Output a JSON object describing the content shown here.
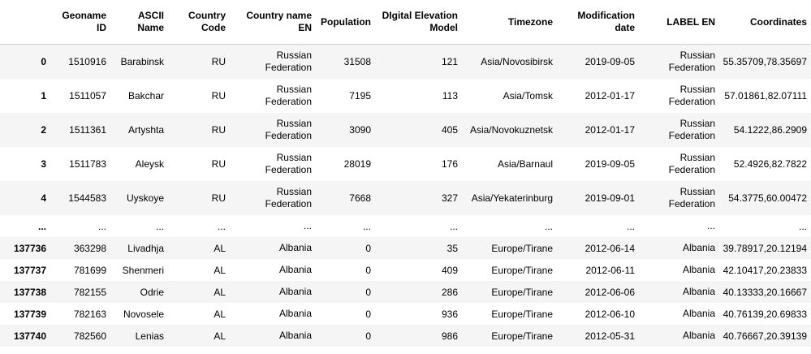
{
  "columns": [
    {
      "label": "Geoname ID"
    },
    {
      "label": "ASCII Name"
    },
    {
      "label": "Country Code"
    },
    {
      "label": "Country name EN"
    },
    {
      "label": "Population"
    },
    {
      "label": "DIgital Elevation Model"
    },
    {
      "label": "Timezone"
    },
    {
      "label": "Modification date"
    },
    {
      "label": "LABEL EN"
    },
    {
      "label": "Coordinates"
    }
  ],
  "rows": [
    {
      "index": "0",
      "cells": [
        "1510916",
        "Barabinsk",
        "RU",
        "Russian Federation",
        "31508",
        "121",
        "Asia/Novosibirsk",
        "2019-09-05",
        "Russian Federation",
        "55.35709,78.35697"
      ]
    },
    {
      "index": "1",
      "cells": [
        "1511057",
        "Bakchar",
        "RU",
        "Russian Federation",
        "7195",
        "113",
        "Asia/Tomsk",
        "2012-01-17",
        "Russian Federation",
        "57.01861,82.07111"
      ]
    },
    {
      "index": "2",
      "cells": [
        "1511361",
        "Artyshta",
        "RU",
        "Russian Federation",
        "3090",
        "405",
        "Asia/Novokuznetsk",
        "2012-01-17",
        "Russian Federation",
        "54.1222,86.2909"
      ]
    },
    {
      "index": "3",
      "cells": [
        "1511783",
        "Aleysk",
        "RU",
        "Russian Federation",
        "28019",
        "176",
        "Asia/Barnaul",
        "2019-09-05",
        "Russian Federation",
        "52.4926,82.7822"
      ]
    },
    {
      "index": "4",
      "cells": [
        "1544583",
        "Uyskoye",
        "RU",
        "Russian Federation",
        "7668",
        "327",
        "Asia/Yekaterinburg",
        "2019-09-01",
        "Russian Federation",
        "54.3775,60.00472"
      ]
    },
    {
      "index": "...",
      "cells": [
        "...",
        "...",
        "...",
        "...",
        "...",
        "...",
        "...",
        "...",
        "...",
        "..."
      ]
    },
    {
      "index": "137736",
      "cells": [
        "363298",
        "Livadhja",
        "AL",
        "Albania",
        "0",
        "35",
        "Europe/Tirane",
        "2012-06-14",
        "Albania",
        "39.78917,20.12194"
      ]
    },
    {
      "index": "137737",
      "cells": [
        "781699",
        "Shenmeri",
        "AL",
        "Albania",
        "0",
        "409",
        "Europe/Tirane",
        "2012-06-11",
        "Albania",
        "42.10417,20.23833"
      ]
    },
    {
      "index": "137738",
      "cells": [
        "782155",
        "Odrie",
        "AL",
        "Albania",
        "0",
        "286",
        "Europe/Tirane",
        "2012-06-06",
        "Albania",
        "40.13333,20.16667"
      ]
    },
    {
      "index": "137739",
      "cells": [
        "782163",
        "Novosele",
        "AL",
        "Albania",
        "0",
        "936",
        "Europe/Tirane",
        "2012-06-10",
        "Albania",
        "40.76139,20.69833"
      ]
    },
    {
      "index": "137740",
      "cells": [
        "782560",
        "Lenias",
        "AL",
        "Albania",
        "0",
        "986",
        "Europe/Tirane",
        "2012-05-31",
        "Albania",
        "40.76667,20.39139"
      ]
    }
  ]
}
